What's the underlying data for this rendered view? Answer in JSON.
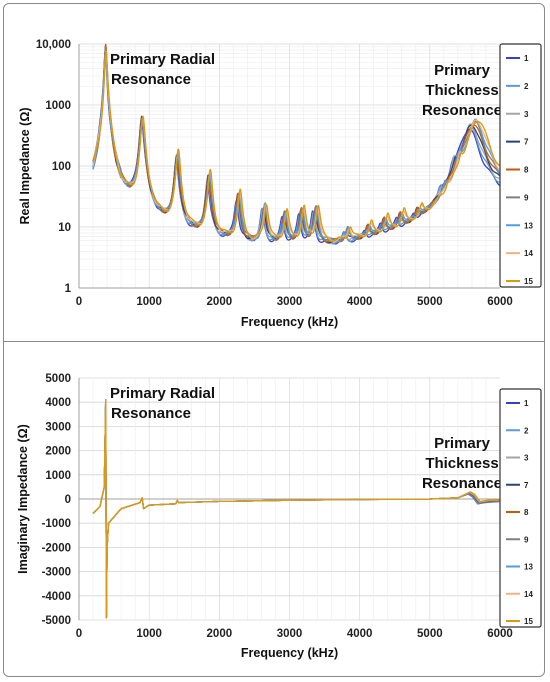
{
  "chart_data": [
    {
      "type": "line",
      "ylabel": "Real Impedance (Ω)",
      "xlabel": "Frequency (kHz)",
      "xlim": [
        0,
        6000
      ],
      "x_ticks": [
        0,
        1000,
        2000,
        3000,
        4000,
        5000,
        6000
      ],
      "x_tick_labels": [
        "0",
        "1000",
        "2000",
        "3000",
        "4000",
        "5000",
        "6000"
      ],
      "yscale": "log",
      "ylim": [
        1,
        10000
      ],
      "y_ticks": [
        1,
        10,
        100,
        1000,
        10000
      ],
      "y_tick_labels": [
        "1",
        "10",
        "100",
        "1000",
        "10,000"
      ],
      "grid": true,
      "legend_position": "right",
      "annotations": [
        {
          "lines": [
            "Primary Radial",
            "Resonance"
          ]
        },
        {
          "lines": [
            "Primary",
            "Thickness",
            "Resonance"
          ]
        }
      ],
      "series": [
        {
          "name": "1",
          "color": "#3340d0"
        },
        {
          "name": "2",
          "color": "#5b9bd5"
        },
        {
          "name": "3",
          "color": "#a5a5a5"
        },
        {
          "name": "7",
          "color": "#264478"
        },
        {
          "name": "8",
          "color": "#c55a11"
        },
        {
          "name": "9",
          "color": "#7f7f7f"
        },
        {
          "name": "13",
          "color": "#4f9fe0"
        },
        {
          "name": "14",
          "color": "#f4b183"
        },
        {
          "name": "15",
          "color": "#d99a10"
        }
      ],
      "resonance_peaks_kHz": [
        380,
        900,
        1400,
        1850,
        2270,
        2640,
        2930,
        3170,
        3370,
        3820,
        4120,
        4350,
        4580,
        4830,
        5200,
        5380,
        5620
      ],
      "peak_values": [
        8500,
        600,
        150,
        68,
        32,
        20,
        15,
        17,
        18,
        6.5,
        7,
        9,
        10,
        9,
        14,
        55,
        500
      ],
      "baseline_values": [
        20,
        8,
        5.5,
        4.5,
        4,
        3.8,
        3.8,
        3.8,
        3.6,
        3.5,
        3.8,
        4,
        4,
        4,
        4,
        8,
        25
      ]
    },
    {
      "type": "line",
      "ylabel": "Imaginary Impedance (Ω)",
      "xlabel": "Frequency (kHz)",
      "xlim": [
        0,
        6000
      ],
      "x_ticks": [
        0,
        1000,
        2000,
        3000,
        4000,
        5000,
        6000
      ],
      "x_tick_labels": [
        "0",
        "1000",
        "2000",
        "3000",
        "4000",
        "5000",
        "6000"
      ],
      "ylim": [
        -5000,
        5000
      ],
      "y_ticks": [
        -5000,
        -4000,
        -3000,
        -2000,
        -1000,
        0,
        1000,
        2000,
        3000,
        4000,
        5000
      ],
      "y_tick_labels": [
        "-5000",
        "-4000",
        "-3000",
        "-2000",
        "-1000",
        "0",
        "1000",
        "2000",
        "3000",
        "4000",
        "5000"
      ],
      "grid": true,
      "legend_position": "right",
      "annotations": [
        {
          "lines": [
            "Primary Radial",
            "Resonance"
          ]
        },
        {
          "lines": [
            "Primary",
            "Thickness",
            "Resonance"
          ]
        }
      ],
      "series": [
        {
          "name": "1",
          "color": "#3340d0"
        },
        {
          "name": "2",
          "color": "#5b9bd5"
        },
        {
          "name": "3",
          "color": "#a5a5a5"
        },
        {
          "name": "7",
          "color": "#264478"
        },
        {
          "name": "8",
          "color": "#c55a11"
        },
        {
          "name": "9",
          "color": "#7f7f7f"
        },
        {
          "name": "13",
          "color": "#4f9fe0"
        },
        {
          "name": "14",
          "color": "#f4b183"
        },
        {
          "name": "15",
          "color": "#d99a10"
        }
      ],
      "key_points": {
        "x": [
          200,
          300,
          360,
          380,
          390,
          400,
          420,
          600,
          870,
          900,
          920,
          1000,
          1380,
          1400,
          1420,
          2000,
          3000,
          4000,
          5000,
          5400,
          5560,
          5620,
          5700,
          5800,
          6000
        ],
        "y": [
          -600,
          -300,
          500,
          4100,
          -4900,
          -2000,
          -1000,
          -400,
          -150,
          50,
          -400,
          -250,
          -200,
          -60,
          -150,
          -100,
          -50,
          -20,
          0,
          50,
          250,
          150,
          -150,
          -100,
          -60
        ]
      }
    }
  ]
}
